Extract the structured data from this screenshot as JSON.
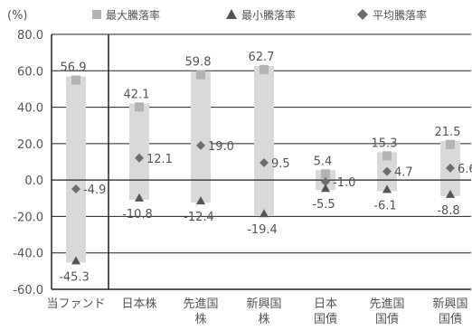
{
  "chart_data": {
    "type": "bar",
    "unit_label": "(%)",
    "ylim": [
      -60,
      80
    ],
    "y_ticks": [
      "80.0",
      "60.0",
      "40.0",
      "20.0",
      "0.0",
      "-20.0",
      "-40.0",
      "-60.0"
    ],
    "y_tick_values": [
      80,
      60,
      40,
      20,
      0,
      -20,
      -40,
      -60
    ],
    "grid": true,
    "legend_position": "top",
    "legend": [
      {
        "name": "最大騰落率",
        "marker": "square"
      },
      {
        "name": "最小騰落率",
        "marker": "triangle"
      },
      {
        "name": "平均騰落率",
        "marker": "diamond"
      }
    ],
    "categories": [
      {
        "lines": [
          "当ファンド"
        ],
        "max": 56.9,
        "min": -45.3,
        "avg": -4.9,
        "max_label": "56.9",
        "min_label": "-45.3",
        "avg_label": "-4.9"
      },
      {
        "lines": [
          "日本株"
        ],
        "max": 42.1,
        "min": -10.8,
        "avg": 12.1,
        "max_label": "42.1",
        "min_label": "-10.8",
        "avg_label": "12.1"
      },
      {
        "lines": [
          "先進国",
          "株"
        ],
        "max": 59.8,
        "min": -12.4,
        "avg": 19.0,
        "max_label": "59.8",
        "min_label": "-12.4",
        "avg_label": "19.0"
      },
      {
        "lines": [
          "新興国",
          "株"
        ],
        "max": 62.7,
        "min": -19.4,
        "avg": 9.5,
        "max_label": "62.7",
        "min_label": "-19.4",
        "avg_label": "9.5"
      },
      {
        "lines": [
          "日本",
          "国債"
        ],
        "max": 5.4,
        "min": -5.5,
        "avg": -1.0,
        "max_label": "5.4",
        "min_label": "-5.5",
        "avg_label": "-1.0"
      },
      {
        "lines": [
          "先進国",
          "国債"
        ],
        "max": 15.3,
        "min": -6.1,
        "avg": 4.7,
        "max_label": "15.3",
        "min_label": "-6.1",
        "avg_label": "4.7"
      },
      {
        "lines": [
          "新興国",
          "国債"
        ],
        "max": 21.5,
        "min": -8.8,
        "avg": 6.6,
        "max_label": "21.5",
        "min_label": "-8.8",
        "avg_label": "6.6"
      }
    ],
    "colors": {
      "range_bar": "#d9d9d9",
      "max_marker": "#b3b3b3",
      "min_marker": "#555555",
      "avg_marker": "#6e6e6e",
      "grid": "#222222",
      "text": "#555555"
    }
  }
}
